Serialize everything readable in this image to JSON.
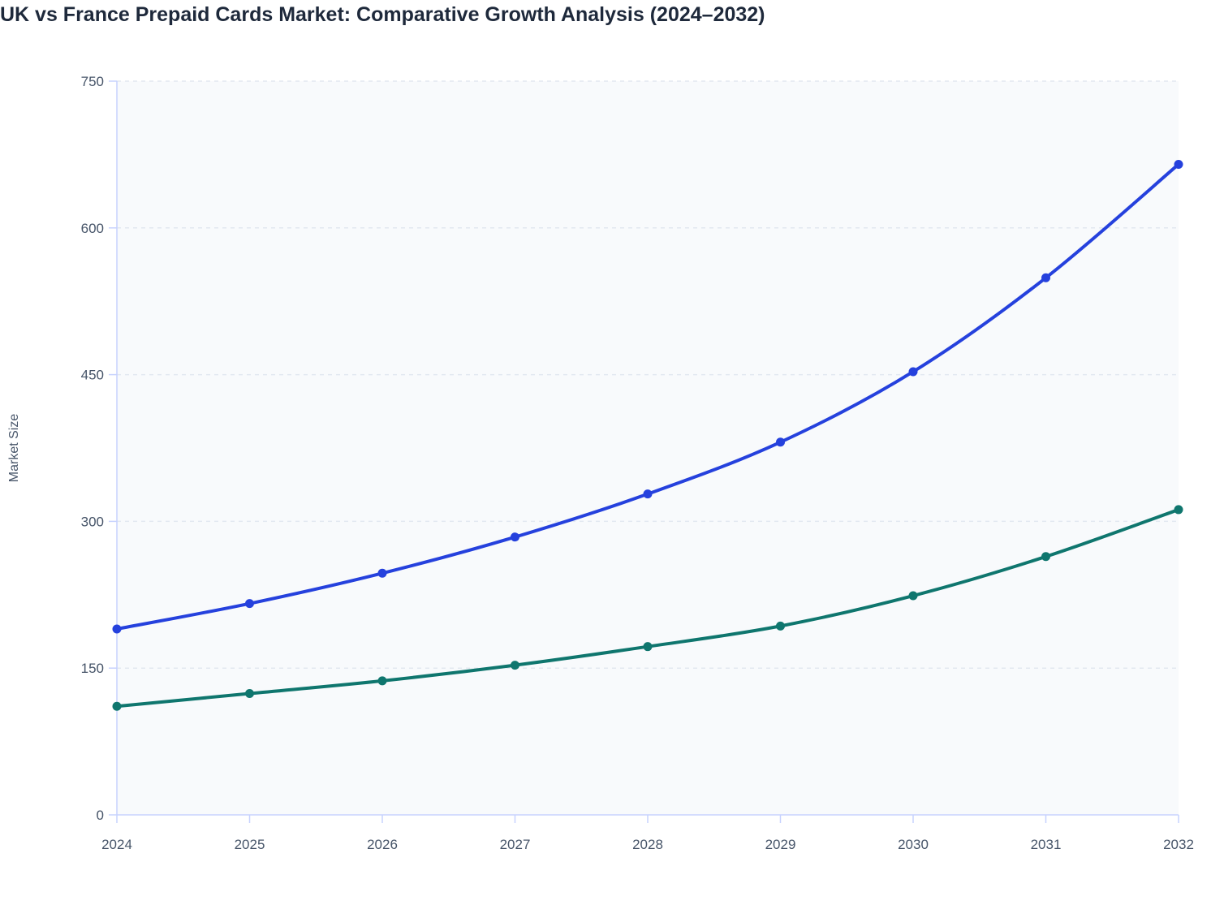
{
  "chart_data": {
    "type": "line",
    "title": "UK vs France Prepaid Cards Market: Comparative Growth Analysis (2024–2032)",
    "xlabel": "",
    "ylabel": "Market Size",
    "x": [
      "2024",
      "2025",
      "2026",
      "2027",
      "2028",
      "2029",
      "2030",
      "2031",
      "2032"
    ],
    "ylim": [
      0,
      750
    ],
    "yticks": [
      0,
      150,
      300,
      450,
      600,
      750
    ],
    "grid": true,
    "legend": "none",
    "series": [
      {
        "color": "#2541dd",
        "values": [
          190,
          216,
          247,
          284,
          328,
          381,
          453,
          549,
          665
        ]
      },
      {
        "color": "#0f766e",
        "values": [
          111,
          124,
          137,
          153,
          172,
          193,
          224,
          264,
          312
        ]
      }
    ]
  }
}
